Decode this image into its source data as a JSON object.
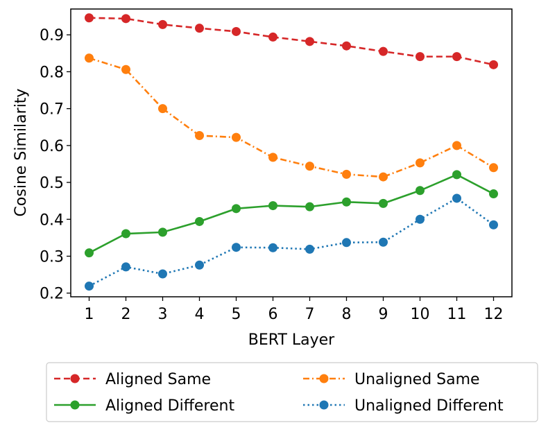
{
  "chart_data": {
    "type": "line",
    "title": "",
    "xlabel": "BERT Layer",
    "ylabel": "Cosine Similarity",
    "x": [
      1,
      2,
      3,
      4,
      5,
      6,
      7,
      8,
      9,
      10,
      11,
      12
    ],
    "x_tick_labels": [
      "1",
      "2",
      "3",
      "4",
      "5",
      "6",
      "7",
      "8",
      "9",
      "10",
      "11",
      "12"
    ],
    "xlim": [
      0.5,
      12.5
    ],
    "ylim": [
      0.19,
      0.97
    ],
    "y_ticks": [
      0.2,
      0.3,
      0.4,
      0.5,
      0.6,
      0.7,
      0.8,
      0.9
    ],
    "y_tick_labels": [
      "0.2",
      "0.3",
      "0.4",
      "0.5",
      "0.6",
      "0.7",
      "0.8",
      "0.9"
    ],
    "grid": false,
    "legend_position": "below",
    "series": [
      {
        "name": "Aligned Same",
        "color": "#d62728",
        "line_style": "dashed",
        "values": [
          0.946,
          0.944,
          0.928,
          0.918,
          0.909,
          0.894,
          0.882,
          0.87,
          0.855,
          0.841,
          0.841,
          0.819
        ]
      },
      {
        "name": "Unaligned Same",
        "color": "#ff7f0e",
        "line_style": "dashdot",
        "values": [
          0.837,
          0.806,
          0.7,
          0.627,
          0.622,
          0.568,
          0.544,
          0.522,
          0.515,
          0.553,
          0.6,
          0.54
        ]
      },
      {
        "name": "Aligned Different",
        "color": "#2ca02c",
        "line_style": "solid",
        "values": [
          0.309,
          0.361,
          0.365,
          0.394,
          0.429,
          0.437,
          0.434,
          0.447,
          0.443,
          0.478,
          0.521,
          0.469
        ]
      },
      {
        "name": "Unaligned Different",
        "color": "#1f77b4",
        "line_style": "dotted",
        "values": [
          0.219,
          0.271,
          0.252,
          0.276,
          0.324,
          0.323,
          0.319,
          0.337,
          0.338,
          0.4,
          0.457,
          0.385
        ]
      }
    ],
    "legend_order": [
      "Aligned Same",
      "Unaligned Same",
      "Aligned Different",
      "Unaligned Different"
    ]
  }
}
